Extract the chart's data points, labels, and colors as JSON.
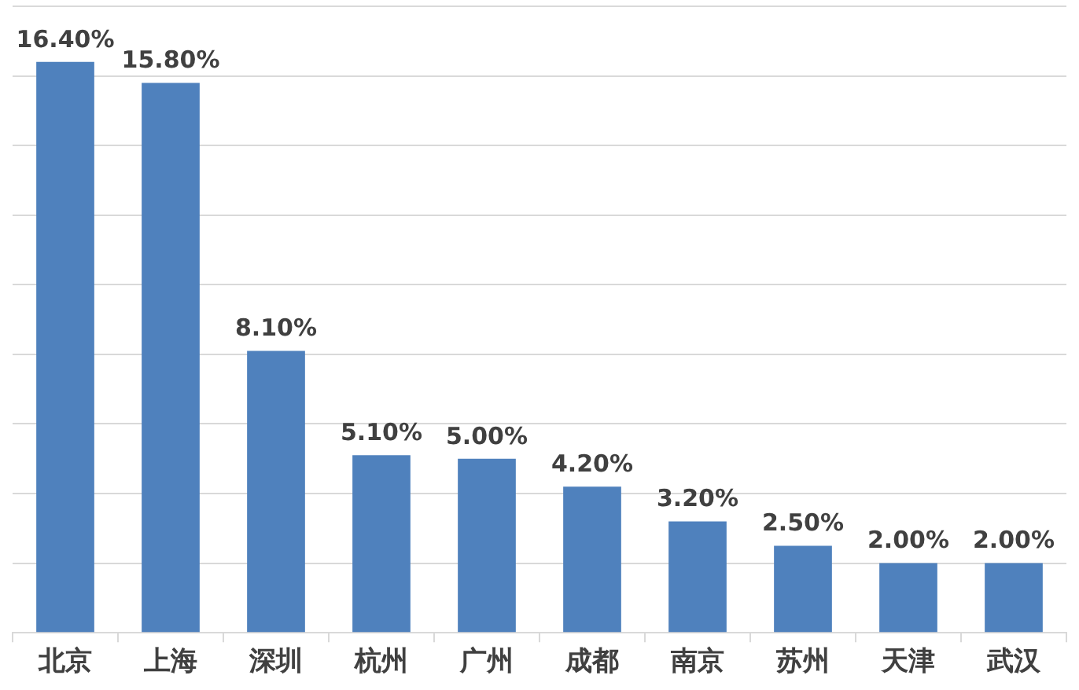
{
  "chart_data": {
    "type": "bar",
    "categories": [
      "北京",
      "上海",
      "深圳",
      "杭州",
      "广州",
      "成都",
      "南京",
      "苏州",
      "天津",
      "武汉"
    ],
    "values": [
      16.4,
      15.8,
      8.1,
      5.1,
      5.0,
      4.2,
      3.2,
      2.5,
      2.0,
      2.0
    ],
    "value_labels": [
      "16.40%",
      "15.80%",
      "8.10%",
      "5.10%",
      "5.00%",
      "4.20%",
      "3.20%",
      "2.50%",
      "2.00%",
      "2.00%"
    ],
    "color": "#4f81bd",
    "ylim": [
      0,
      18
    ],
    "yticks": [
      {
        "value": 0,
        "label": null
      },
      {
        "value": 2,
        "label": null
      },
      {
        "value": 4,
        "label": null
      },
      {
        "value": 6,
        "label": null
      },
      {
        "value": 8,
        "label": null
      },
      {
        "value": 10,
        "label": null
      },
      {
        "value": 12,
        "label": null
      },
      {
        "value": 14,
        "label": null
      },
      {
        "value": 16,
        "label": null
      },
      {
        "value": 18,
        "label": null
      }
    ],
    "grid": "y",
    "tick_labels": "x"
  }
}
